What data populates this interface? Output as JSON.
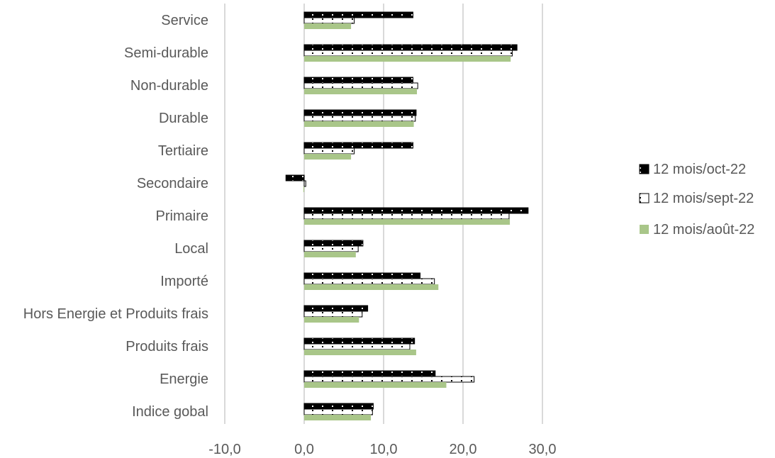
{
  "chart_data": {
    "type": "bar",
    "orientation": "horizontal",
    "categories": [
      "Service",
      "Semi-durable",
      "Non-durable",
      "Durable",
      "Tertiaire",
      "Secondaire",
      "Primaire",
      "Local",
      "Importé",
      "Hors Energie et Produits frais",
      "Produits frais",
      "Energie",
      "Indice gobal"
    ],
    "series": [
      {
        "name": "12 mois/oct-22",
        "color": "#000000",
        "pattern": "dotted-solid",
        "values": [
          13.7,
          26.8,
          13.7,
          14.1,
          13.7,
          -2.3,
          28.2,
          7.4,
          14.6,
          8.0,
          13.9,
          16.5,
          8.7
        ]
      },
      {
        "name": "12 mois/sept-22",
        "color": "#ffffff",
        "pattern": "dotted-outline",
        "values": [
          6.3,
          26.2,
          14.3,
          14.0,
          6.3,
          0.2,
          25.8,
          6.8,
          16.4,
          7.3,
          13.3,
          21.4,
          8.6
        ]
      },
      {
        "name": "12 mois/août-22",
        "color": "#a9c689",
        "pattern": "solid",
        "values": [
          5.9,
          26.0,
          14.2,
          13.8,
          5.9,
          -0.1,
          25.9,
          6.5,
          16.9,
          6.9,
          14.1,
          17.9,
          8.4
        ]
      }
    ],
    "x_ticks": [
      "-10,0",
      "0,0",
      "10,0",
      "20,0",
      "30,0"
    ],
    "x_tick_values": [
      -10,
      0,
      10,
      20,
      30
    ],
    "xlim": [
      -10,
      30
    ],
    "grid": "vertical",
    "legend": "right",
    "title": "",
    "xlabel": "",
    "ylabel": ""
  }
}
